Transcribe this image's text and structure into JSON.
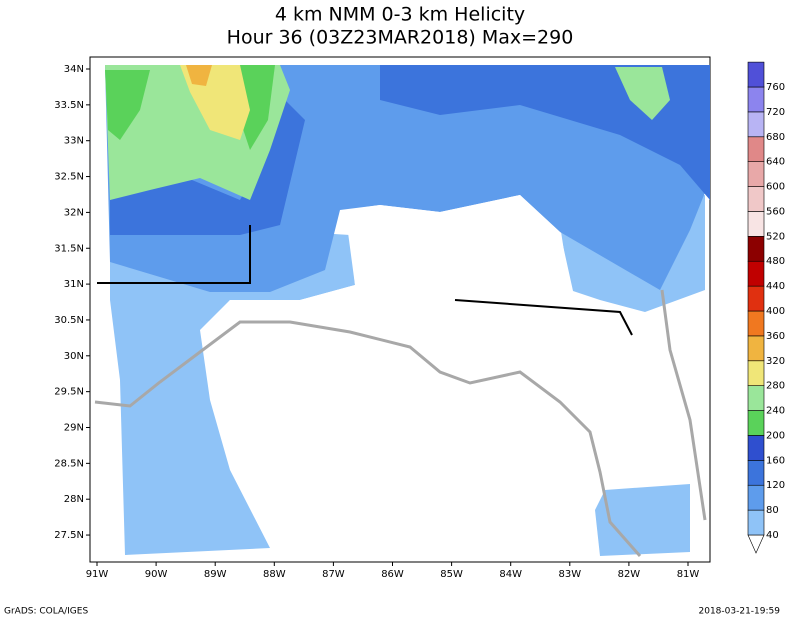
{
  "title": [
    "4 km NMM 0-3 km Helicity",
    "Hour 36 (03Z23MAR2018) Max=290"
  ],
  "lat_labels": [
    "34N",
    "33.5N",
    "33N",
    "32.5N",
    "32N",
    "31.5N",
    "31N",
    "30.5N",
    "30N",
    "29.5N",
    "29N",
    "28.5N",
    "28N",
    "27.5N"
  ],
  "lon_labels": [
    "91W",
    "90W",
    "89W",
    "88W",
    "87W",
    "86W",
    "85W",
    "84W",
    "83W",
    "82W",
    "81W"
  ],
  "colorbar": {
    "levels": [
      40,
      80,
      120,
      160,
      200,
      240,
      280,
      320,
      360,
      400,
      440,
      480,
      520,
      560,
      600,
      640,
      680,
      720,
      760
    ],
    "colors": [
      "#8fc3f7",
      "#5e9cec",
      "#3c74dc",
      "#2f4fcf",
      "#5ad25a",
      "#9ae69a",
      "#f0e678",
      "#f0b440",
      "#f07820",
      "#e03010",
      "#c00000",
      "#8c0000",
      "#f8e4e4",
      "#f0c8c8",
      "#e8a8a8",
      "#e08888",
      "#b8b4f4",
      "#8c84ee",
      "#5050d8"
    ],
    "below_color": "#ffffff",
    "above_color": "#c09080"
  },
  "footer_left": "GrADS: COLA/IGES",
  "footer_right": "2018-03-21-19:59"
}
